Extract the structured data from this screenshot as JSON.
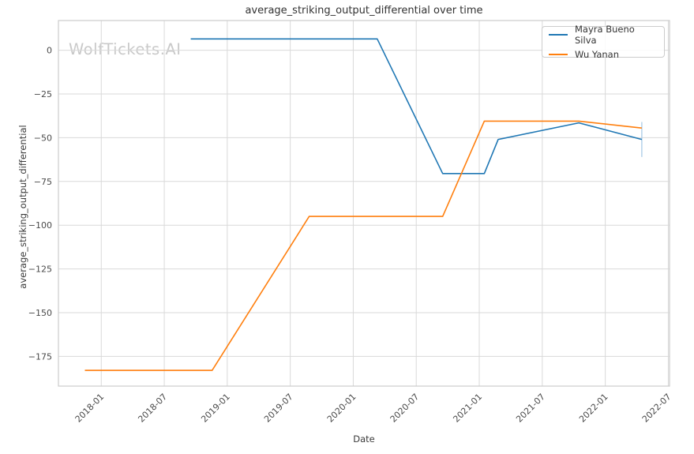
{
  "app": {
    "watermark": "WolfTickets.AI"
  },
  "chart_data": {
    "type": "line",
    "title": "average_striking_output_differential over time",
    "xlabel": "Date",
    "ylabel": "average_striking_output_differential",
    "grid": true,
    "legend_position": "upper right",
    "x_unit": "decimal_year",
    "xlim": [
      2017.66,
      2022.51
    ],
    "ylim": [
      -192,
      17
    ],
    "x_ticks": [
      {
        "value": 2018.0,
        "label": "2018-01"
      },
      {
        "value": 2018.5,
        "label": "2018-07"
      },
      {
        "value": 2019.0,
        "label": "2019-01"
      },
      {
        "value": 2019.5,
        "label": "2019-07"
      },
      {
        "value": 2020.0,
        "label": "2020-01"
      },
      {
        "value": 2020.5,
        "label": "2020-07"
      },
      {
        "value": 2021.0,
        "label": "2021-01"
      },
      {
        "value": 2021.5,
        "label": "2021-07"
      },
      {
        "value": 2022.0,
        "label": "2022-01"
      },
      {
        "value": 2022.5,
        "label": "2022-07"
      }
    ],
    "y_ticks": [
      {
        "value": 0,
        "label": "0"
      },
      {
        "value": -25,
        "label": "−25"
      },
      {
        "value": -50,
        "label": "−50"
      },
      {
        "value": -75,
        "label": "−75"
      },
      {
        "value": -100,
        "label": "−100"
      },
      {
        "value": -125,
        "label": "−125"
      },
      {
        "value": -150,
        "label": "−150"
      },
      {
        "value": -175,
        "label": "−175"
      }
    ],
    "series": [
      {
        "name": "Mayra Bueno Silva",
        "color": "#1f77b4",
        "points": [
          [
            2018.71,
            6.5
          ],
          [
            2020.19,
            6.5
          ],
          [
            2020.71,
            -70.5
          ],
          [
            2021.04,
            -70.5
          ],
          [
            2021.15,
            -51
          ],
          [
            2021.79,
            -41.5
          ],
          [
            2022.29,
            -51
          ]
        ]
      },
      {
        "name": "Wu Yanan",
        "color": "#ff7f0e",
        "points": [
          [
            2017.87,
            -183
          ],
          [
            2018.88,
            -183
          ],
          [
            2019.65,
            -95
          ],
          [
            2020.71,
            -95
          ],
          [
            2021.04,
            -40.5
          ],
          [
            2021.79,
            -40.5
          ],
          [
            2022.29,
            -44.5
          ]
        ]
      }
    ],
    "error_bars": [
      {
        "series": "Mayra Bueno Silva",
        "x": 2022.29,
        "y_low": -61,
        "y_high": -41,
        "color": "#b0cfe8"
      }
    ],
    "style": {
      "background": "#ffffff",
      "grid_color": "#d9d9d9",
      "spine_color": "#cccccc",
      "tick_color": "#4a4a4a",
      "title_color": "#333333",
      "watermark_color": "#c9c9c9",
      "line_width": 1.6
    }
  }
}
